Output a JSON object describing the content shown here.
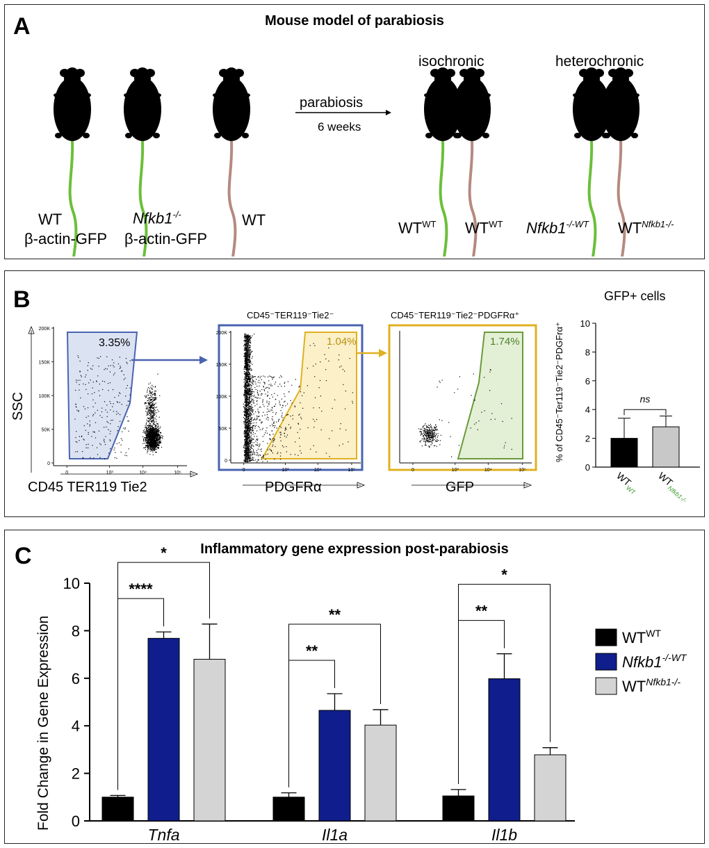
{
  "panelA": {
    "label": "A",
    "title": "Mouse model of parabiosis",
    "mouse1_line1": "WT",
    "mouse1_line2": "β-actin-GFP",
    "mouse2_gene": "Nfkb1",
    "mouse2_sup": "-/-",
    "mouse2_line2": "β-actin-GFP",
    "mouse3": "WT",
    "arrow_top": "parabiosis",
    "arrow_bottom": "6 weeks",
    "iso_title": "isochronic",
    "hetero_title": "heterochronic",
    "iso_left_base": "WT",
    "iso_left_sup": "WT",
    "iso_right_base": "WT",
    "iso_right_sup": "WT",
    "het_left_base": "Nfkb1",
    "het_left_sup": "-/-WT",
    "het_right_base": "WT",
    "het_right_sup": "Nfkb1-/-",
    "colors": {
      "gfp_mouse": "#a6e85c",
      "gfp_tail": "#6bbf3a",
      "wt_mouse": "#5b5451",
      "wt_tail": "#b58a80"
    }
  },
  "panelB": {
    "label": "B",
    "flow1": {
      "ylabel": "SSC",
      "xlabel": "CD45 TER119 Tie2",
      "gate_pct": "3.35%",
      "yticks": [
        "200K",
        "150K",
        "100K",
        "50K",
        "0"
      ],
      "xticks": [
        "0",
        "10³",
        "10⁴",
        "10⁵"
      ]
    },
    "flow2": {
      "title": "CD45⁻TER119⁻Tie2⁻",
      "xlabel": "PDGFRα",
      "gate_pct": "1.04%",
      "yticks": [
        "200K",
        "150K",
        "100K",
        "50K",
        "0"
      ],
      "xticks": [
        "0",
        "10³",
        "10⁴",
        "10⁵"
      ]
    },
    "flow3": {
      "title": "CD45⁻TER119⁻Tie2⁻PDGFRα⁺",
      "xlabel": "GFP",
      "gate_pct": "1.74%",
      "xticks": [
        "0",
        "10³",
        "10⁴",
        "10⁵"
      ]
    },
    "colors": {
      "gate1": "#4a63b0",
      "gate2": "#e0b020",
      "gate3": "#6a9a3a",
      "fill1": "#dbe3f3",
      "fill2": "#fbf0c8",
      "fill3": "#e3f0d6"
    }
  },
  "gfp_chart": {
    "type": "bar",
    "title": "GFP+ cells",
    "ylabel": "% of CD45⁻Ter119⁻Tie2⁻PDGFrα⁺",
    "ylim": [
      0,
      10
    ],
    "yticks": [
      "0",
      "2",
      "4",
      "6",
      "8",
      "10"
    ],
    "categories": [
      {
        "base": "WT",
        "sup": "WT"
      },
      {
        "base": "WT",
        "sup": "Nfkb1-/-"
      }
    ],
    "values": [
      2.0,
      2.8
    ],
    "errors": [
      1.4,
      0.75
    ],
    "colors": [
      "#000000",
      "#c8c8c8"
    ],
    "sup_color": "#3a9a2a",
    "significance": "ns"
  },
  "chart_data": {
    "type": "bar",
    "title": "Inflammatory gene expression post-parabiosis",
    "ylabel": "Fold Change in Gene Expression",
    "ylim": [
      0,
      10
    ],
    "yticks": [
      "0",
      "2",
      "4",
      "6",
      "8",
      "10"
    ],
    "categories": [
      "Tnfa",
      "Il1a",
      "Il1b"
    ],
    "series": [
      {
        "name": "WTWT",
        "base": "WT",
        "sup": "WT",
        "italic": false,
        "color": "#000000",
        "values": [
          1.0,
          1.0,
          1.05
        ],
        "errors": [
          0.07,
          0.18,
          0.27
        ]
      },
      {
        "name": "Nfkb1-/-WT",
        "base": "Nfkb1",
        "sup": "-/-WT",
        "italic": true,
        "color": "#0f1e8c",
        "values": [
          7.68,
          4.65,
          5.98
        ],
        "errors": [
          0.27,
          0.7,
          1.05
        ]
      },
      {
        "name": "WTNfkb1-/-",
        "base": "WT",
        "sup": "Nfkb1-/-",
        "italic": false,
        "color": "#d4d4d4",
        "values": [
          6.8,
          4.03,
          2.78
        ],
        "errors": [
          1.48,
          0.65,
          0.3
        ]
      }
    ],
    "significance": [
      {
        "category": "Tnfa",
        "compare": "Nfkb1-/-WT",
        "label": "****"
      },
      {
        "category": "Tnfa",
        "compare": "WTNfkb1-/-",
        "label": "*"
      },
      {
        "category": "Il1a",
        "compare": "Nfkb1-/-WT",
        "label": "**"
      },
      {
        "category": "Il1a",
        "compare": "WTNfkb1-/-",
        "label": "**"
      },
      {
        "category": "Il1b",
        "compare": "Nfkb1-/-WT",
        "label": "**"
      },
      {
        "category": "Il1b",
        "compare": "WTNfkb1-/-",
        "label": "*"
      }
    ],
    "legend_position": "right"
  },
  "panelC": {
    "label": "C"
  }
}
